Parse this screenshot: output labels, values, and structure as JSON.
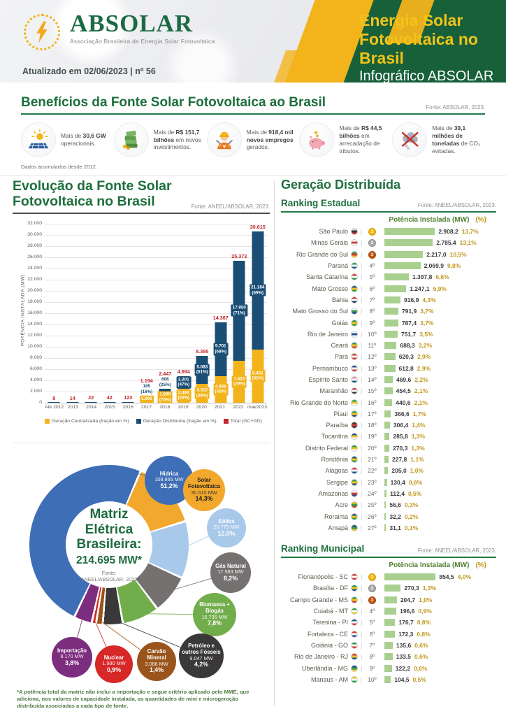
{
  "header": {
    "logo_text": "ABSOLAR",
    "logo_subtitle": "Associação Brasileira de Energia Solar Fotovoltaica",
    "updated": "Atualizado em 02/06/2023 | nº 56",
    "title_line1": "Energia Solar",
    "title_line2": "Fotovoltaica no Brasil",
    "subtitle": "Infográfico ABSOLAR",
    "colors": {
      "green": "#17603A",
      "yellow": "#F2B31B"
    }
  },
  "benefits": {
    "title": "Benefícios da Fonte Solar Fotovoltaica ao Brasil",
    "source": "Fonte: ABSOLAR, 2023.",
    "footnote": "Dados acumulados desde 2012.",
    "items": [
      {
        "icon": "solar-panel-icon",
        "pre": "Mais de ",
        "bold": "30,6 GW",
        "post": " operacionais."
      },
      {
        "icon": "money-icon",
        "pre": "Mais de ",
        "bold": "R$ 151,7 bilhões",
        "post": " em novos investimentos."
      },
      {
        "icon": "worker-icon",
        "pre": "Mais de ",
        "bold": "918,4 mil novos empregos",
        "post": " gerados."
      },
      {
        "icon": "piggy-bank-icon",
        "pre": "Mais de ",
        "bold": "R$ 44,5 bilhões",
        "post": " em arrecadação de tributos."
      },
      {
        "icon": "co2-icon",
        "pre": "Mais de ",
        "bold": "39,1 milhões de toneladas",
        "post": " de CO₂ evitadas."
      }
    ]
  },
  "gd_section_title": "Geração Distribuída",
  "chart_data": [
    {
      "type": "bar",
      "stacked": true,
      "title_line1": "Evolução da Fonte Solar",
      "title_line2": "Fotovoltaica no Brasil",
      "source": "Fonte: ANEEL/ABSOLAR, 2023.",
      "ylabel": "POTÊNCIA INSTALADA  (MW)",
      "ylim": [
        0,
        32000
      ],
      "ytick_step": 2000,
      "grid": true,
      "legend_position": "bottom",
      "categories": [
        "Até 2012",
        "2013",
        "2014",
        "2015",
        "2016",
        "2017",
        "2018",
        "2019",
        "2020",
        "2021",
        "2022",
        "mai/2023"
      ],
      "series": [
        {
          "name": "Geração Centralizada (fração em %)",
          "color": "#F2B31B",
          "values": [
            0,
            0,
            0,
            0,
            0,
            1009,
            1839,
            2493,
            3312,
            4666,
            7423,
            9431
          ],
          "labels": [
            "",
            "",
            "",
            "",
            "",
            "1.009",
            "1.839|(75%)",
            "2.493|(53%)",
            "3.312|(39%)",
            "4.666|(32%)",
            "7.423|(29%)",
            "9.431|(31%)"
          ]
        },
        {
          "name": "Geração Distribuída (fração em %)",
          "color": "#1A4E75",
          "values": [
            8,
            14,
            22,
            42,
            123,
            185,
            608,
            2201,
            5083,
            9701,
            17950,
            21184
          ],
          "labels": [
            "",
            "",
            "",
            "",
            "",
            "185|(16%)",
            "608|(25%)",
            "2.201|(47%)",
            "5.083|(61%)",
            "9.701|(68%)",
            "17.950|(71%)",
            "21.184|(69%)"
          ]
        }
      ],
      "totals": {
        "name": "Total (GC+GD)",
        "color": "#C0272D",
        "labels": [
          "8",
          "14",
          "22",
          "42",
          "123",
          "1.194",
          "2.447",
          "4.694",
          "8.395",
          "14.367",
          "25.373",
          "30.615"
        ]
      }
    },
    {
      "type": "donut",
      "center_title_lines": [
        "Matriz",
        "Elétrica",
        "Brasileira:"
      ],
      "center_total": "214.695 MW*",
      "center_source_line1": "Fonte:",
      "center_source_line2": "ANEEL/ABSOLAR, 2023",
      "footnote": "*A potência total da matriz não inclui a importação e segue critério aplicado pelo MME, que adiciona, nos valores de capacidade instalada, as quantidades de mini e microgeração distribuída associadas a cada tipo de fonte.",
      "slices": [
        {
          "label": "Hídrica",
          "mw": "109.865 MW",
          "pct": "51,2%",
          "value": 51.2,
          "color": "#3E6EB5"
        },
        {
          "label": "Solar Fotovoltaica",
          "mw": "30.615 MW",
          "pct": "14,3%",
          "value": 14.3,
          "color": "#F2A82D",
          "text": "dark"
        },
        {
          "label": "Eólica",
          "mw": "25.775 MW",
          "pct": "12,0%",
          "value": 12.0,
          "color": "#A9C9EA"
        },
        {
          "label": "Gás Natural",
          "mw": "17.583 MW",
          "pct": "8,2%",
          "value": 8.2,
          "color": "#767171"
        },
        {
          "label": "Biomassa + Biogás",
          "mw": "16.735 MW",
          "pct": "7,8%",
          "value": 7.8,
          "color": "#72AD4C"
        },
        {
          "label": "Petróleo e outros Fósseis",
          "mw": "9.047 MW",
          "pct": "4,2%",
          "value": 4.2,
          "color": "#3A3838"
        },
        {
          "label": "Carvão Mineral",
          "mw": "3.086 MW",
          "pct": "1,4%",
          "value": 1.4,
          "color": "#99551B"
        },
        {
          "label": "Nuclear",
          "mw": "1.990 MW",
          "pct": "0,9%",
          "value": 0.9,
          "color": "#D62927"
        },
        {
          "label": "Importação",
          "mw": "8.170 MW",
          "pct": "3,8%",
          "value": 3.8,
          "color": "#7C2D7E"
        }
      ]
    },
    {
      "type": "bar",
      "orientation": "horizontal",
      "title": "Ranking Estadual",
      "source": "Fonte: ANEEL/ABSOLAR, 2023.",
      "col_header": "Potência Instalada (MW)",
      "col_header2": "(%)",
      "bar_color": "#A9D08E",
      "rows": [
        {
          "name": "São Paulo",
          "pos": "1º",
          "medal": "gold",
          "value_label": "2.908,2",
          "value": 2908.2,
          "pct": "13,7%",
          "flag": [
            "#d9d9d9",
            "#3a3a3a",
            "#cf2e2e"
          ]
        },
        {
          "name": "Minas Gerais",
          "pos": "2º",
          "medal": "silver",
          "value_label": "2.785,4",
          "value": 2785.4,
          "pct": "13,1%",
          "flag": [
            "#ffffff",
            "#d23b3b",
            "#ffffff"
          ]
        },
        {
          "name": "Rio Grande do Sul",
          "pos": "3º",
          "medal": "bronze",
          "value_label": "2.217,0",
          "value": 2217.0,
          "pct": "10,5%",
          "flag": [
            "#2e9e4f",
            "#d23b3b",
            "#f2c31a"
          ]
        },
        {
          "name": "Paraná",
          "pos": "4º",
          "value_label": "2.069,9",
          "value": 2069.9,
          "pct": "9,8%",
          "flag": [
            "#2e9e4f",
            "#ffffff",
            "#1f4f8f"
          ]
        },
        {
          "name": "Santa Catarina",
          "pos": "5º",
          "value_label": "1.397,8",
          "value": 1397.8,
          "pct": "6,6%",
          "flag": [
            "#d23b3b",
            "#ffffff",
            "#2e9e4f"
          ]
        },
        {
          "name": "Mato Grosso",
          "pos": "6º",
          "value_label": "1.247,1",
          "value": 1247.1,
          "pct": "5,9%",
          "flag": [
            "#1f4f8f",
            "#f2c31a",
            "#2e9e4f"
          ]
        },
        {
          "name": "Bahia",
          "pos": "7º",
          "value_label": "916,9",
          "value": 916.9,
          "pct": "4,3%",
          "flag": [
            "#d23b3b",
            "#ffffff",
            "#1f3a5f"
          ]
        },
        {
          "name": "Mato Grosso do Sul",
          "pos": "8º",
          "value_label": "791,9",
          "value": 791.9,
          "pct": "3,7%",
          "flag": [
            "#ffffff",
            "#2e9e4f",
            "#1f4f8f"
          ]
        },
        {
          "name": "Goiás",
          "pos": "9º",
          "value_label": "787,4",
          "value": 787.4,
          "pct": "3,7%",
          "flag": [
            "#2e9e4f",
            "#f2c31a",
            "#2e9e4f"
          ]
        },
        {
          "name": "Rio de Janeiro",
          "pos": "10º",
          "value_label": "751,7",
          "value": 751.7,
          "pct": "3,5%",
          "flag": [
            "#ffffff",
            "#1f4f8f",
            "#ffffff"
          ]
        },
        {
          "name": "Ceará",
          "pos": "11º",
          "value_label": "688,3",
          "value": 688.3,
          "pct": "3,2%",
          "flag": [
            "#2e9e4f",
            "#f2c31a",
            "#d23b3b"
          ]
        },
        {
          "name": "Pará",
          "pos": "12º",
          "value_label": "620,3",
          "value": 620.3,
          "pct": "2,9%",
          "flag": [
            "#d23b3b",
            "#ffffff",
            "#d23b3b"
          ]
        },
        {
          "name": "Pernambuco",
          "pos": "13º",
          "value_label": "612,8",
          "value": 612.8,
          "pct": "2,9%",
          "flag": [
            "#1f4f8f",
            "#ffffff",
            "#d23b3b"
          ]
        },
        {
          "name": "Espírito Santo",
          "pos": "14º",
          "value_label": "469,6",
          "value": 469.6,
          "pct": "2,2%",
          "flag": [
            "#e891b0",
            "#ffffff",
            "#1f4f8f"
          ]
        },
        {
          "name": "Maranhão",
          "pos": "15º",
          "value_label": "454,5",
          "value": 454.5,
          "pct": "2,1%",
          "flag": [
            "#d23b3b",
            "#ffffff",
            "#3a3a3a"
          ]
        },
        {
          "name": "Rio Grande do Norte",
          "pos": "16º",
          "value_label": "440,6",
          "value": 440.6,
          "pct": "2,1%",
          "flag": [
            "#2e9e4f",
            "#f2c31a",
            "#ffffff"
          ]
        },
        {
          "name": "Piauí",
          "pos": "17º",
          "value_label": "366,6",
          "value": 366.6,
          "pct": "1,7%",
          "flag": [
            "#2e9e4f",
            "#f2c31a",
            "#1f4f8f"
          ]
        },
        {
          "name": "Paraíba",
          "pos": "18º",
          "value_label": "306,4",
          "value": 306.4,
          "pct": "1,4%",
          "flag": [
            "#3a3a3a",
            "#d23b3b",
            "#3a3a3a"
          ]
        },
        {
          "name": "Tocantins",
          "pos": "19º",
          "value_label": "285,8",
          "value": 285.8,
          "pct": "1,3%",
          "flag": [
            "#1f4f8f",
            "#f2c31a",
            "#ffffff"
          ]
        },
        {
          "name": "Distrito Federal",
          "pos": "20º",
          "value_label": "270,3",
          "value": 270.3,
          "pct": "1,3%",
          "flag": [
            "#2e9e4f",
            "#f2c31a",
            "#ffffff"
          ]
        },
        {
          "name": "Rondônia",
          "pos": "21º",
          "value_label": "227,8",
          "value": 227.8,
          "pct": "1,1%",
          "flag": [
            "#1f4f8f",
            "#f2c31a",
            "#2e9e4f"
          ]
        },
        {
          "name": "Alagoas",
          "pos": "22º",
          "value_label": "205,0",
          "value": 205.0,
          "pct": "1,0%",
          "flag": [
            "#d23b3b",
            "#ffffff",
            "#1f4f8f"
          ]
        },
        {
          "name": "Sergipe",
          "pos": "23º",
          "value_label": "130,4",
          "value": 130.4,
          "pct": "0,6%",
          "flag": [
            "#2e9e4f",
            "#f2c31a",
            "#1f4f8f"
          ]
        },
        {
          "name": "Amazonas",
          "pos": "24º",
          "value_label": "112,4",
          "value": 112.4,
          "pct": "0,5%",
          "flag": [
            "#ffffff",
            "#d23b3b",
            "#1f4f8f"
          ]
        },
        {
          "name": "Acre",
          "pos": "25º",
          "value_label": "56,6",
          "value": 56.6,
          "pct": "0,3%",
          "flag": [
            "#f2c31a",
            "#2e9e4f",
            "#d23b3b"
          ]
        },
        {
          "name": "Roraima",
          "pos": "26º",
          "value_label": "32,2",
          "value": 32.2,
          "pct": "0,2%",
          "flag": [
            "#1f4f8f",
            "#f2c31a",
            "#2e9e4f"
          ]
        },
        {
          "name": "Amapá",
          "pos": "27º",
          "value_label": "31,1",
          "value": 31.1,
          "pct": "0,1%",
          "flag": [
            "#1f4f8f",
            "#2e9e4f",
            "#f2c31a"
          ]
        }
      ]
    },
    {
      "type": "bar",
      "orientation": "horizontal",
      "title": "Ranking Municipal",
      "source": "Fonte: ANEEL/ABSOLAR, 2023.",
      "col_header": "Potência Instalada (MW)",
      "col_header2": "(%)",
      "bar_color": "#A9D08E",
      "rows": [
        {
          "name": "Florianópolis - SC",
          "pos": "1º",
          "medal": "gold",
          "value_label": "854,5",
          "value": 854.5,
          "pct": "4,0%",
          "flag": [
            "#d23b3b",
            "#ffffff",
            "#d23b3b"
          ]
        },
        {
          "name": "Brasília - DF",
          "pos": "2º",
          "medal": "silver",
          "value_label": "270,3",
          "value": 270.3,
          "pct": "1,3%",
          "flag": [
            "#2e9e4f",
            "#f2c31a",
            "#1f4f8f"
          ]
        },
        {
          "name": "Campo Grande - MS",
          "pos": "3º",
          "medal": "bronze",
          "value_label": "204,7",
          "value": 204.7,
          "pct": "1,0%",
          "flag": [
            "#2e9e4f",
            "#f2c31a",
            "#d23b3b"
          ]
        },
        {
          "name": "Cuiabá - MT",
          "pos": "4º",
          "value_label": "196,6",
          "value": 196.6,
          "pct": "0,9%",
          "flag": [
            "#2e9e4f",
            "#ffffff",
            "#f2c31a"
          ]
        },
        {
          "name": "Teresina - PI",
          "pos": "5º",
          "value_label": "176,7",
          "value": 176.7,
          "pct": "0,8%",
          "flag": [
            "#1f4f8f",
            "#ffffff",
            "#d23b3b"
          ]
        },
        {
          "name": "Fortaleza - CE",
          "pos": "6º",
          "value_label": "172,3",
          "value": 172.3,
          "pct": "0,8%",
          "flag": [
            "#d23b3b",
            "#ffffff",
            "#1f4f8f"
          ]
        },
        {
          "name": "Goiânia - GO",
          "pos": "7º",
          "value_label": "135,6",
          "value": 135.6,
          "pct": "0,6%",
          "flag": [
            "#2e9e4f",
            "#ffffff",
            "#d23b3b"
          ]
        },
        {
          "name": "Rio de Janeiro - RJ",
          "pos": "8º",
          "value_label": "133,5",
          "value": 133.5,
          "pct": "0,6%",
          "flag": [
            "#d23b3b",
            "#f2c31a",
            "#1f4f8f"
          ]
        },
        {
          "name": "Uberlândia - MG",
          "pos": "9º",
          "value_label": "122,2",
          "value": 122.2,
          "pct": "0,6%",
          "flag": [
            "#1f4f8f",
            "#2e9e4f",
            "#f2c31a"
          ]
        },
        {
          "name": "Manaus - AM",
          "pos": "10º",
          "value_label": "104,5",
          "value": 104.5,
          "pct": "0,5%",
          "flag": [
            "#f2c31a",
            "#ffffff",
            "#2e9e4f"
          ]
        }
      ]
    }
  ]
}
